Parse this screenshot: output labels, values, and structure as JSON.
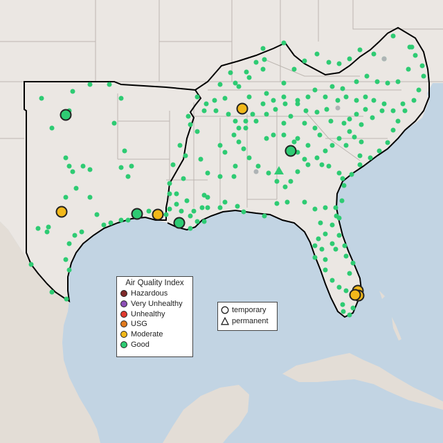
{
  "map": {
    "colors": {
      "water": "#c2d4e3",
      "land_fill": "#ebe7e3",
      "neighbor_land": "#e3ddd6",
      "state_border": "#bcb6b0",
      "highlight_border": "#000000"
    }
  },
  "legend_aqi": {
    "title": "Air Quality Index",
    "items": [
      {
        "label": "Hazardous",
        "color": "#7e2a2a"
      },
      {
        "label": "Very Unhealthy",
        "color": "#8c4fb6"
      },
      {
        "label": "Unhealthy",
        "color": "#e03a2f"
      },
      {
        "label": "USG",
        "color": "#e07a1f"
      },
      {
        "label": "Moderate",
        "color": "#f2b81a"
      },
      {
        "label": "Good",
        "color": "#2ecb73"
      }
    ]
  },
  "legend_shape": {
    "items": [
      {
        "label": "temporary",
        "shape": "circle"
      },
      {
        "label": "permanent",
        "shape": "triangle"
      }
    ]
  }
}
